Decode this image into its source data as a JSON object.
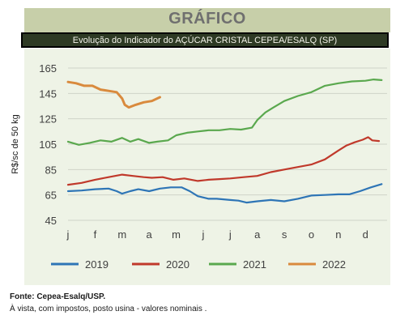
{
  "header": {
    "title": "GRÁFICO",
    "subtitle": "Evolução do Indicador do AÇÚCAR CRISTAL CEPEA/ESALQ (SP)"
  },
  "footer": {
    "source": "Fonte: Cepea-Esalq/USP.",
    "note": "À vista, com impostos, posto usina - valores nominais ."
  },
  "chart_data": {
    "type": "line",
    "title": "Evolução do Indicador do AÇÚCAR CRISTAL CEPEA/ESALQ (SP)",
    "ylabel": "R$/sc de 50 kg",
    "xlabel": "",
    "x_ticks": [
      "j",
      "f",
      "m",
      "a",
      "m",
      "j",
      "j",
      "a",
      "s",
      "o",
      "n",
      "d"
    ],
    "y_ticks": [
      45,
      65,
      85,
      105,
      125,
      145,
      165
    ],
    "ylim": [
      45,
      165
    ],
    "xlim": [
      0,
      11.8
    ],
    "grid": "horizontal",
    "legend_position": "bottom",
    "series": [
      {
        "name": "2019",
        "color": "#2e75b6",
        "points": [
          [
            0,
            68
          ],
          [
            0.5,
            68.5
          ],
          [
            1,
            69.5
          ],
          [
            1.5,
            70
          ],
          [
            1.8,
            68
          ],
          [
            2,
            66
          ],
          [
            2.3,
            68
          ],
          [
            2.6,
            69.5
          ],
          [
            3,
            68
          ],
          [
            3.4,
            70
          ],
          [
            3.8,
            71
          ],
          [
            4.2,
            71
          ],
          [
            4.5,
            68
          ],
          [
            4.8,
            64
          ],
          [
            5.2,
            62
          ],
          [
            5.5,
            62
          ],
          [
            6,
            61
          ],
          [
            6.3,
            60.5
          ],
          [
            6.6,
            59
          ],
          [
            7,
            60
          ],
          [
            7.5,
            61
          ],
          [
            8,
            60
          ],
          [
            8.5,
            62
          ],
          [
            9,
            64.5
          ],
          [
            9.5,
            65
          ],
          [
            10,
            65.5
          ],
          [
            10.4,
            65.5
          ],
          [
            10.8,
            68
          ],
          [
            11.2,
            71
          ],
          [
            11.6,
            73.5
          ]
        ]
      },
      {
        "name": "2020",
        "color": "#c0392b",
        "points": [
          [
            0,
            73
          ],
          [
            0.5,
            74.5
          ],
          [
            1,
            77
          ],
          [
            1.5,
            79
          ],
          [
            2,
            81
          ],
          [
            2.4,
            80
          ],
          [
            2.8,
            79
          ],
          [
            3.1,
            78.5
          ],
          [
            3.5,
            79
          ],
          [
            3.9,
            77
          ],
          [
            4.3,
            78
          ],
          [
            4.8,
            76
          ],
          [
            5.2,
            77
          ],
          [
            5.6,
            77.5
          ],
          [
            6,
            78
          ],
          [
            6.5,
            79
          ],
          [
            7,
            80
          ],
          [
            7.5,
            83
          ],
          [
            8,
            85
          ],
          [
            8.5,
            87
          ],
          [
            9,
            89
          ],
          [
            9.5,
            93
          ],
          [
            10,
            100
          ],
          [
            10.3,
            104
          ],
          [
            10.6,
            106.5
          ],
          [
            10.9,
            108.5
          ],
          [
            11.1,
            110.5
          ],
          [
            11.25,
            108
          ],
          [
            11.5,
            107.5
          ]
        ]
      },
      {
        "name": "2021",
        "color": "#5aa84e",
        "points": [
          [
            0,
            107
          ],
          [
            0.4,
            104.5
          ],
          [
            0.8,
            106
          ],
          [
            1.2,
            108
          ],
          [
            1.6,
            107
          ],
          [
            2,
            110
          ],
          [
            2.3,
            107
          ],
          [
            2.6,
            109
          ],
          [
            3,
            106
          ],
          [
            3.3,
            107
          ],
          [
            3.7,
            108
          ],
          [
            4,
            112
          ],
          [
            4.4,
            114
          ],
          [
            4.8,
            115
          ],
          [
            5.2,
            116
          ],
          [
            5.6,
            116
          ],
          [
            6,
            117
          ],
          [
            6.4,
            116.5
          ],
          [
            6.8,
            118
          ],
          [
            7,
            124
          ],
          [
            7.3,
            130
          ],
          [
            7.6,
            134
          ],
          [
            8,
            139
          ],
          [
            8.5,
            143
          ],
          [
            9,
            146
          ],
          [
            9.5,
            151
          ],
          [
            10,
            153
          ],
          [
            10.5,
            154.5
          ],
          [
            11,
            155
          ],
          [
            11.3,
            156
          ],
          [
            11.6,
            155.5
          ]
        ]
      },
      {
        "name": "2022",
        "color": "#d98a3d",
        "points": [
          [
            0,
            154
          ],
          [
            0.3,
            153
          ],
          [
            0.6,
            151
          ],
          [
            0.9,
            151
          ],
          [
            1.2,
            148
          ],
          [
            1.5,
            147
          ],
          [
            1.8,
            146
          ],
          [
            2,
            141
          ],
          [
            2.1,
            136
          ],
          [
            2.25,
            134
          ],
          [
            2.5,
            136
          ],
          [
            2.8,
            138
          ],
          [
            3.1,
            139
          ],
          [
            3.4,
            142
          ]
        ]
      }
    ]
  }
}
